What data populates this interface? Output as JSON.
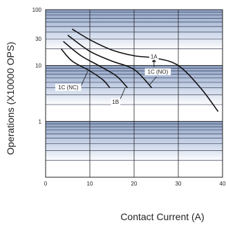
{
  "chart_data": {
    "type": "line",
    "xlabel": "Contact Current (A)",
    "ylabel": "Operations (X10000 OPS)",
    "x_scale": "linear",
    "y_scale": "log",
    "xlim": [
      0,
      40
    ],
    "ylim": [
      0.1,
      100
    ],
    "x_ticks": [
      "0",
      "10",
      "20",
      "30",
      "40"
    ],
    "y_ticks": [
      {
        "value": 100,
        "label": "100"
      },
      {
        "value": 30,
        "label": "30"
      },
      {
        "value": 10,
        "label": "10"
      },
      {
        "value": 1,
        "label": "1"
      }
    ],
    "grid": true,
    "series": [
      {
        "name": "1A",
        "x": [
          6,
          10,
          15,
          20,
          25,
          30,
          35,
          39
        ],
        "y": [
          45,
          29,
          19,
          15,
          13.5,
          10,
          4,
          1.5
        ]
      },
      {
        "name": "1C (NO)",
        "x": [
          5,
          10,
          15,
          20,
          24
        ],
        "y": [
          35,
          18,
          12,
          8.5,
          4
        ]
      },
      {
        "name": "1B",
        "x": [
          4,
          8,
          12,
          16,
          18.5
        ],
        "y": [
          27,
          15,
          10,
          6.5,
          4
        ]
      },
      {
        "name": "1C (NC)",
        "x": [
          3.5,
          6,
          10,
          13,
          14.5
        ],
        "y": [
          20,
          12,
          8,
          5.5,
          4
        ]
      }
    ],
    "annotations": [
      {
        "text": "1A",
        "series": "1A"
      },
      {
        "text": "1C (NO)",
        "series": "1C (NO)"
      },
      {
        "text": "1B",
        "series": "1B"
      },
      {
        "text": "1C (NC)",
        "series": "1C (NC)"
      }
    ]
  }
}
